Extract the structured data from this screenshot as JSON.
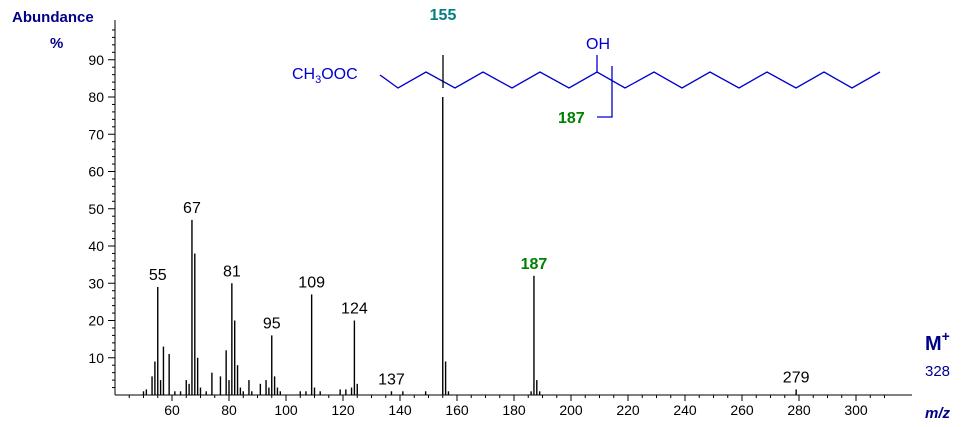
{
  "chart_data": {
    "type": "bar",
    "ylabel_line1": "Abundance",
    "ylabel_line2": "%",
    "xlabel": "m/z",
    "xlim": [
      40,
      310
    ],
    "ylim": [
      0,
      100
    ],
    "x_ticks": [
      60,
      80,
      100,
      120,
      140,
      160,
      180,
      200,
      220,
      240,
      260,
      280,
      300
    ],
    "y_ticks": [
      10,
      20,
      30,
      40,
      50,
      60,
      70,
      80,
      90
    ],
    "peaks": [
      {
        "x": 50,
        "y": 1
      },
      {
        "x": 51,
        "y": 1.5
      },
      {
        "x": 53,
        "y": 5
      },
      {
        "x": 54,
        "y": 9
      },
      {
        "x": 55,
        "y": 29
      },
      {
        "x": 56,
        "y": 4
      },
      {
        "x": 57,
        "y": 13
      },
      {
        "x": 59,
        "y": 11
      },
      {
        "x": 61,
        "y": 1
      },
      {
        "x": 63,
        "y": 1
      },
      {
        "x": 65,
        "y": 4
      },
      {
        "x": 66,
        "y": 3
      },
      {
        "x": 67,
        "y": 47
      },
      {
        "x": 68,
        "y": 38
      },
      {
        "x": 69,
        "y": 10
      },
      {
        "x": 70,
        "y": 2
      },
      {
        "x": 72,
        "y": 1
      },
      {
        "x": 74,
        "y": 6
      },
      {
        "x": 77,
        "y": 5
      },
      {
        "x": 79,
        "y": 12
      },
      {
        "x": 80,
        "y": 4
      },
      {
        "x": 81,
        "y": 30
      },
      {
        "x": 82,
        "y": 20
      },
      {
        "x": 83,
        "y": 8
      },
      {
        "x": 84,
        "y": 2
      },
      {
        "x": 85,
        "y": 1
      },
      {
        "x": 87,
        "y": 4
      },
      {
        "x": 88,
        "y": 1
      },
      {
        "x": 91,
        "y": 3
      },
      {
        "x": 93,
        "y": 4
      },
      {
        "x": 94,
        "y": 2
      },
      {
        "x": 95,
        "y": 16
      },
      {
        "x": 96,
        "y": 5
      },
      {
        "x": 97,
        "y": 2
      },
      {
        "x": 98,
        "y": 1
      },
      {
        "x": 105,
        "y": 1
      },
      {
        "x": 107,
        "y": 1
      },
      {
        "x": 109,
        "y": 27
      },
      {
        "x": 110,
        "y": 2
      },
      {
        "x": 112,
        "y": 1
      },
      {
        "x": 119,
        "y": 1.5
      },
      {
        "x": 121,
        "y": 1.5
      },
      {
        "x": 123,
        "y": 2
      },
      {
        "x": 124,
        "y": 20
      },
      {
        "x": 125,
        "y": 3
      },
      {
        "x": 137,
        "y": 1
      },
      {
        "x": 141,
        "y": 1
      },
      {
        "x": 149,
        "y": 1
      },
      {
        "x": 155,
        "y": 80
      },
      {
        "x": 156,
        "y": 9
      },
      {
        "x": 157,
        "y": 1
      },
      {
        "x": 186,
        "y": 1
      },
      {
        "x": 187,
        "y": 32
      },
      {
        "x": 188,
        "y": 4
      },
      {
        "x": 189,
        "y": 1
      },
      {
        "x": 279,
        "y": 1.5
      }
    ],
    "peak_labels": [
      {
        "x": 55,
        "y": 29,
        "text": "55",
        "color": "black"
      },
      {
        "x": 67,
        "y": 47,
        "text": "67",
        "color": "black"
      },
      {
        "x": 81,
        "y": 30,
        "text": "81",
        "color": "black"
      },
      {
        "x": 95,
        "y": 16,
        "text": "95",
        "color": "black"
      },
      {
        "x": 109,
        "y": 27,
        "text": "109",
        "color": "black"
      },
      {
        "x": 124,
        "y": 20,
        "text": "124",
        "color": "black"
      },
      {
        "x": 137,
        "y": 1,
        "text": "137",
        "color": "black"
      },
      {
        "x": 187,
        "y": 32,
        "text": "187",
        "color": "green"
      },
      {
        "x": 279,
        "y": 1.5,
        "text": "279",
        "color": "black"
      }
    ],
    "top_label": {
      "x": 155,
      "text": "155",
      "color": "teal"
    },
    "molecular_ion": {
      "symbol": "M",
      "charge": "+",
      "value": "328"
    },
    "structure": {
      "ester_prefix": "CH",
      "ester_subscript": "3",
      "ester_suffix": "OOC",
      "substituent": "OH",
      "fragment_label": "187"
    },
    "colors": {
      "axis_text": "#00008b",
      "teal": "#008080",
      "green": "#008000",
      "structure": "#0000cd"
    }
  }
}
